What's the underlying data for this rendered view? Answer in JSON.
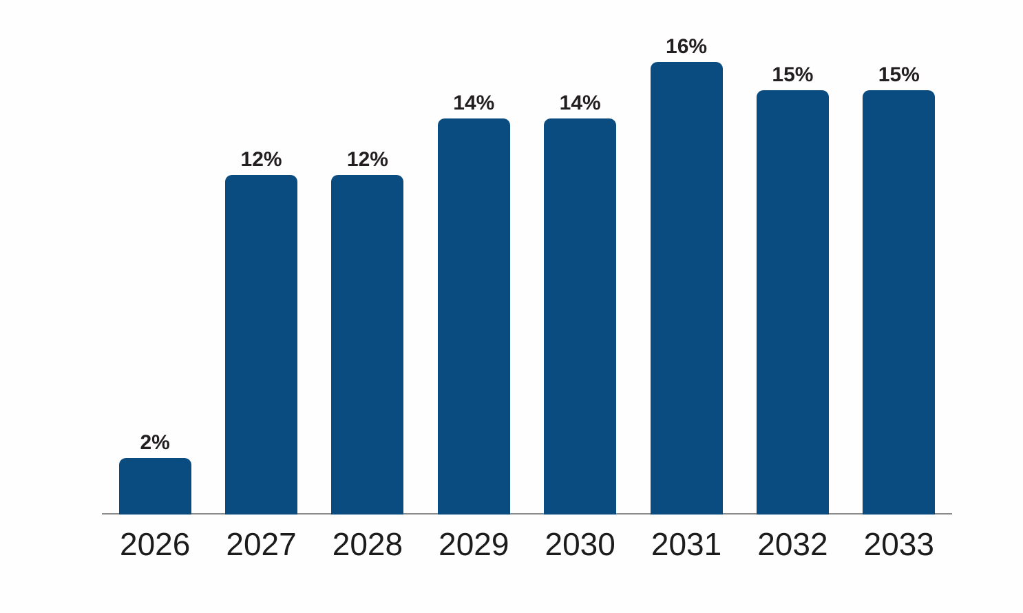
{
  "chart_data": {
    "type": "bar",
    "title": "",
    "xlabel": "",
    "ylabel": "",
    "categories": [
      "2026",
      "2027",
      "2028",
      "2029",
      "2030",
      "2031",
      "2032",
      "2033"
    ],
    "values": [
      2,
      12,
      12,
      14,
      14,
      16,
      15,
      15
    ],
    "data_labels": [
      "2%",
      "12%",
      "12%",
      "14%",
      "14%",
      "16%",
      "15%",
      "15%"
    ],
    "ylim": [
      0,
      16
    ],
    "grid": false,
    "legend": false,
    "layout_hints": {
      "bar_corner": "rounded-top",
      "data_label_position": "above-bar",
      "axis_shown": "x-only"
    },
    "colors": {
      "bar": "#0b4c80",
      "data_label": "#231f20",
      "category_label": "#1c1c1c",
      "axis_line": "#8a8a8a",
      "background": "#fefefe"
    }
  }
}
